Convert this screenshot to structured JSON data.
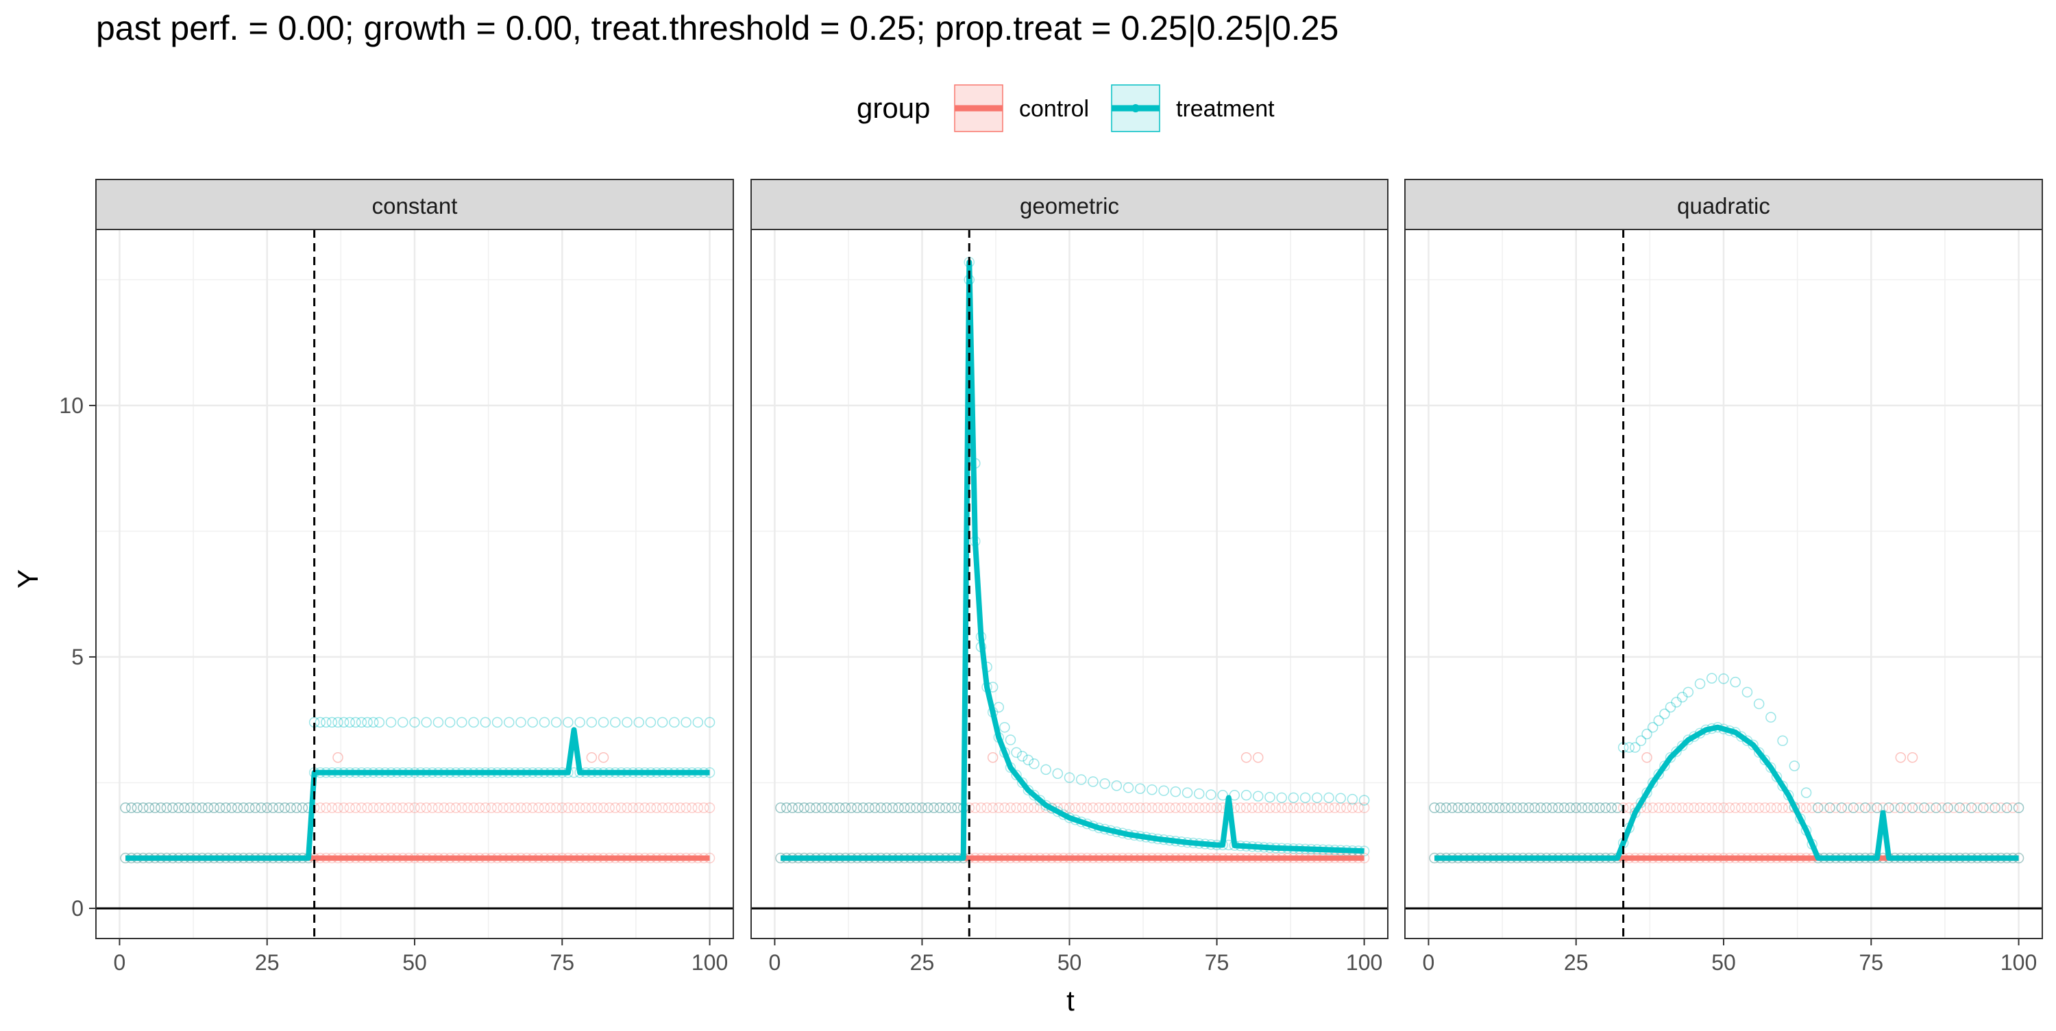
{
  "title": "past perf. = 0.00; growth = 0.00,  treat.threshold = 0.25;  prop.treat = 0.25|0.25|0.25",
  "legend": {
    "title": "group",
    "items": [
      {
        "label": "control",
        "color": "#F8766D"
      },
      {
        "label": "treatment",
        "color": "#00BFC4"
      }
    ]
  },
  "axes": {
    "xlabel": "t",
    "ylabel": "Y",
    "xlim": [
      -4,
      104
    ],
    "ylim": [
      -0.6,
      13.5
    ],
    "x_ticks": [
      0,
      25,
      50,
      75,
      100
    ],
    "y_ticks": [
      0,
      5,
      10
    ]
  },
  "chart_data": {
    "type": "line",
    "facets": [
      "constant",
      "geometric",
      "quadratic"
    ],
    "treatment_start": 33,
    "threshold_line": {
      "x": 33,
      "style": "dashed"
    },
    "zero_line": {
      "y": 0
    },
    "series": [
      {
        "name": "control",
        "color": "#F8766D",
        "line": {
          "constant": [
            [
              1,
              1.0
            ],
            [
              33,
              1.0
            ],
            [
              100,
              1.0
            ]
          ],
          "geometric": [
            [
              1,
              1.0
            ],
            [
              33,
              1.0
            ],
            [
              100,
              1.0
            ]
          ],
          "quadratic": [
            [
              1,
              1.0
            ],
            [
              33,
              1.0
            ],
            [
              100,
              1.0
            ]
          ]
        },
        "points_levels": [
          1.0,
          2.0
        ],
        "outlier_points": [
          [
            37,
            3.0
          ],
          [
            80,
            3.0
          ],
          [
            82,
            3.0
          ]
        ]
      },
      {
        "name": "treatment",
        "color": "#00BFC4",
        "line": {
          "constant": [
            [
              1,
              1.0
            ],
            [
              32,
              1.0
            ],
            [
              33,
              2.7
            ],
            [
              76,
              2.7
            ],
            [
              77,
              3.55
            ],
            [
              78,
              2.7
            ],
            [
              100,
              2.7
            ]
          ],
          "geometric": [
            [
              1,
              1.0
            ],
            [
              32,
              1.0
            ],
            [
              33,
              12.85
            ],
            [
              34,
              7.3
            ],
            [
              35,
              5.4
            ],
            [
              36,
              4.4
            ],
            [
              38,
              3.4
            ],
            [
              40,
              2.8
            ],
            [
              43,
              2.35
            ],
            [
              46,
              2.05
            ],
            [
              50,
              1.8
            ],
            [
              55,
              1.6
            ],
            [
              60,
              1.47
            ],
            [
              65,
              1.38
            ],
            [
              70,
              1.31
            ],
            [
              75,
              1.26
            ],
            [
              76,
              1.26
            ],
            [
              77,
              2.2
            ],
            [
              78,
              1.25
            ],
            [
              85,
              1.2
            ],
            [
              90,
              1.18
            ],
            [
              95,
              1.16
            ],
            [
              100,
              1.14
            ]
          ],
          "quadratic": [
            [
              1,
              1.0
            ],
            [
              32,
              1.0
            ],
            [
              33,
              1.3
            ],
            [
              35,
              1.9
            ],
            [
              38,
              2.5
            ],
            [
              41,
              3.0
            ],
            [
              44,
              3.35
            ],
            [
              47,
              3.55
            ],
            [
              49,
              3.6
            ],
            [
              52,
              3.5
            ],
            [
              55,
              3.25
            ],
            [
              58,
              2.8
            ],
            [
              61,
              2.25
            ],
            [
              64,
              1.55
            ],
            [
              66,
              1.0
            ],
            [
              76,
              1.0
            ],
            [
              77,
              1.9
            ],
            [
              78,
              1.0
            ],
            [
              100,
              1.0
            ]
          ]
        },
        "points_upper": {
          "constant": [
            [
              35,
              3.7
            ],
            [
              40,
              3.7
            ],
            [
              50,
              3.7
            ],
            [
              60,
              3.7
            ],
            [
              70,
              3.7
            ],
            [
              80,
              3.7
            ],
            [
              90,
              3.7
            ],
            [
              100,
              3.7
            ]
          ],
          "geometric": [
            [
              33,
              12.5
            ],
            [
              35,
              5.2
            ],
            [
              37,
              4.4
            ],
            [
              39,
              3.6
            ],
            [
              41,
              3.1
            ],
            [
              45,
              2.8
            ],
            [
              50,
              2.6
            ],
            [
              55,
              2.5
            ],
            [
              60,
              2.4
            ],
            [
              65,
              2.35
            ],
            [
              70,
              2.3
            ],
            [
              75,
              2.25
            ],
            [
              80,
              2.25
            ],
            [
              85,
              2.2
            ],
            [
              90,
              2.2
            ],
            [
              95,
              2.2
            ],
            [
              100,
              2.15
            ]
          ],
          "quadratic": [
            [
              35,
              3.2
            ],
            [
              38,
              3.6
            ],
            [
              41,
              4.0
            ],
            [
              44,
              4.3
            ],
            [
              47,
              4.55
            ],
            [
              49,
              4.6
            ],
            [
              52,
              4.5
            ],
            [
              55,
              4.2
            ],
            [
              58,
              3.8
            ],
            [
              61,
              3.1
            ],
            [
              64,
              2.3
            ],
            [
              66,
              2.0
            ],
            [
              70,
              2.0
            ],
            [
              80,
              2.0
            ],
            [
              90,
              2.0
            ],
            [
              100,
              2.0
            ]
          ]
        }
      }
    ],
    "xlabel": "t",
    "ylabel": "Y",
    "xlim": [
      -4,
      104
    ],
    "ylim": [
      -0.6,
      13.5
    ],
    "grid": true,
    "legend_position": "top"
  }
}
